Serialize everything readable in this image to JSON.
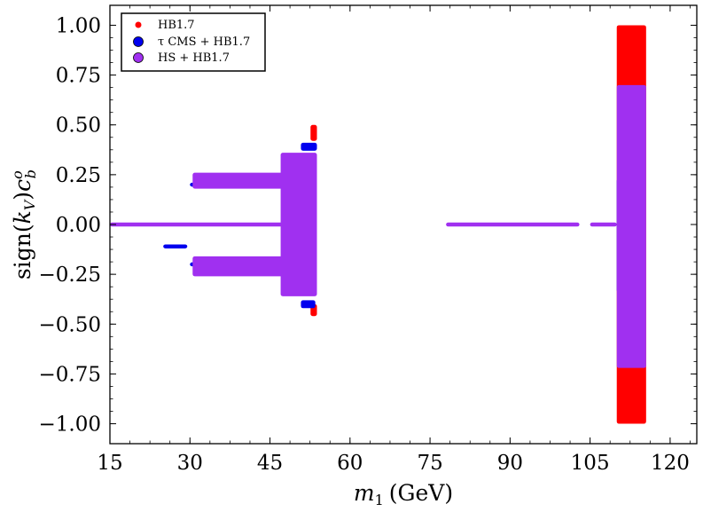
{
  "chart_data": {
    "type": "scatter",
    "title": "",
    "xlabel": "m_1 (GeV)",
    "xlabel_parts": {
      "symbol": "m",
      "subscript": "1",
      "unit": "(GeV)"
    },
    "ylabel": "sign(k_V) c_b^o",
    "ylabel_parts": {
      "prefix": "sign(",
      "k": "k",
      "k_sub": "V",
      "close": ")",
      "c": "c",
      "c_sub": "b",
      "c_sup": "o"
    },
    "xlim": [
      15,
      125
    ],
    "ylim": [
      -1.1,
      1.1
    ],
    "x_ticks": [
      15,
      30,
      45,
      60,
      75,
      90,
      105,
      120
    ],
    "x_tick_labels": [
      "15",
      "30",
      "45",
      "60",
      "75",
      "90",
      "105",
      "120"
    ],
    "y_ticks": [
      1.0,
      0.75,
      0.5,
      0.25,
      0.0,
      -0.25,
      -0.5,
      -0.75,
      -1.0
    ],
    "y_tick_labels": [
      "1.00",
      "0.75",
      "0.50",
      "0.25",
      "0.00",
      "−0.25",
      "−0.50",
      "−0.75",
      "−1.00"
    ],
    "grid": false,
    "legend_position": "top-left",
    "colors": {
      "hb": "#ff0000",
      "tau": "#0000ee",
      "hs": "#a030f0"
    },
    "series": [
      {
        "name": "HB1.7",
        "label": "HB1.7",
        "color": "#ff0000",
        "marker": "small-dot",
        "bands": [
          {
            "x": [
              110,
              115.5
            ],
            "y": [
              -1.0,
              1.0
            ]
          },
          {
            "x": [
              52.6,
              53.8
            ],
            "y": [
              0.42,
              0.5
            ]
          },
          {
            "x": [
              52.6,
              53.8
            ],
            "y": [
              -0.46,
              -0.4
            ]
          }
        ]
      },
      {
        "name": "tau CMS + HB1.7",
        "label": "τ CMS + HB1.7",
        "color": "#0000ee",
        "marker": "circle",
        "bands": [
          {
            "x": [
              110,
              115
            ],
            "y": [
              -0.34,
              0.23
            ]
          },
          {
            "x": [
              50.8,
              53.8
            ],
            "y": [
              0.37,
              0.41
            ]
          },
          {
            "x": [
              50.8,
              53.5
            ],
            "y": [
              -0.42,
              -0.38
            ]
          },
          {
            "x": [
              25,
              29.5
            ],
            "y": [
              -0.12,
              -0.1
            ]
          },
          {
            "x": [
              30,
              33
            ],
            "y": [
              0.19,
              0.21
            ]
          },
          {
            "x": [
              30,
              33
            ],
            "y": [
              -0.21,
              -0.19
            ]
          }
        ]
      },
      {
        "name": "HS + HB1.7",
        "label": "HS + HB1.7",
        "color": "#a030f0",
        "marker": "circle",
        "bands": [
          {
            "x": [
              110,
              115.5
            ],
            "y": [
              -0.72,
              0.7
            ]
          },
          {
            "x": [
              15,
              53.8
            ],
            "y": [
              -0.01,
              0.01
            ]
          },
          {
            "x": [
              78,
              103
            ],
            "y": [
              -0.01,
              0.01
            ]
          },
          {
            "x": [
              105,
              110
            ],
            "y": [
              -0.01,
              0.01
            ]
          },
          {
            "x": [
              30.5,
              48
            ],
            "y": [
              0.18,
              0.26
            ]
          },
          {
            "x": [
              30.5,
              48
            ],
            "y": [
              -0.26,
              -0.16
            ]
          },
          {
            "x": [
              47,
              53.8
            ],
            "y": [
              -0.36,
              0.36
            ]
          }
        ]
      }
    ]
  }
}
